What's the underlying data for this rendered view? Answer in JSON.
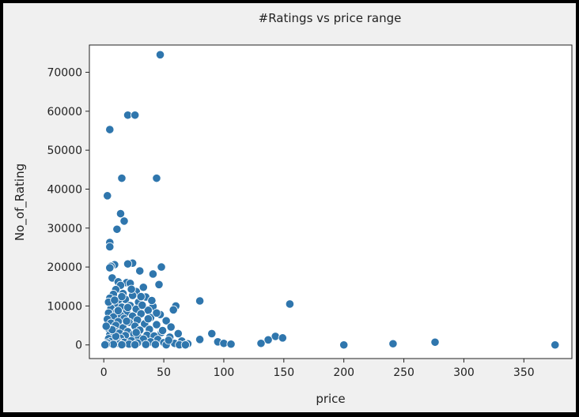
{
  "chart_data": {
    "type": "scatter",
    "title": "#Ratings vs price range",
    "xlabel": "price",
    "ylabel": "No_of_Rating",
    "xlim": [
      -12,
      390
    ],
    "ylim": [
      -3500,
      77000
    ],
    "x_ticks": [
      0,
      50,
      100,
      150,
      200,
      250,
      300,
      350
    ],
    "y_ticks": [
      0,
      10000,
      20000,
      30000,
      40000,
      50000,
      60000,
      70000
    ],
    "grid": false,
    "legend": "none",
    "marker_color": "#2f76ad",
    "marker_edge_color": "#ffffff",
    "series": [
      {
        "points": [
          [
            47,
            74500
          ],
          [
            20,
            59000
          ],
          [
            26,
            59000
          ],
          [
            5,
            55300
          ],
          [
            15,
            42800
          ],
          [
            44,
            42800
          ],
          [
            3,
            38300
          ],
          [
            14,
            33700
          ],
          [
            17,
            31800
          ],
          [
            11,
            29700
          ],
          [
            5,
            26300
          ],
          [
            5,
            25200
          ],
          [
            24,
            21000
          ],
          [
            20,
            20800
          ],
          [
            9,
            20600
          ],
          [
            6,
            20200
          ],
          [
            48,
            20000
          ],
          [
            5,
            19800
          ],
          [
            30,
            19000
          ],
          [
            41,
            18200
          ],
          [
            7,
            17200
          ],
          [
            12,
            16200
          ],
          [
            19,
            16000
          ],
          [
            22,
            15800
          ],
          [
            46,
            15500
          ],
          [
            14,
            15300
          ],
          [
            33,
            14800
          ],
          [
            10,
            14200
          ],
          [
            27,
            13700
          ],
          [
            16,
            13200
          ],
          [
            8,
            13000
          ],
          [
            24,
            12700
          ],
          [
            35,
            12300
          ],
          [
            5,
            12000
          ],
          [
            18,
            11700
          ],
          [
            12,
            11400
          ],
          [
            80,
            11300
          ],
          [
            29,
            11000
          ],
          [
            155,
            10500
          ],
          [
            9,
            10300
          ],
          [
            22,
            10100
          ],
          [
            60,
            10000
          ],
          [
            41,
            9900
          ],
          [
            15,
            9700
          ],
          [
            6,
            9400
          ],
          [
            27,
            9200
          ],
          [
            58,
            9000
          ],
          [
            37,
            8900
          ],
          [
            11,
            8600
          ],
          [
            19,
            8400
          ],
          [
            4,
            8200
          ],
          [
            31,
            8000
          ],
          [
            47,
            7800
          ],
          [
            14,
            7600
          ],
          [
            24,
            7400
          ],
          [
            8,
            7200
          ],
          [
            39,
            7000
          ],
          [
            17,
            6800
          ],
          [
            3,
            6600
          ],
          [
            28,
            6400
          ],
          [
            52,
            6200
          ],
          [
            12,
            6000
          ],
          [
            21,
            5800
          ],
          [
            6,
            5600
          ],
          [
            34,
            5400
          ],
          [
            44,
            5200
          ],
          [
            10,
            5000
          ],
          [
            26,
            4800
          ],
          [
            56,
            4600
          ],
          [
            16,
            4400
          ],
          [
            4,
            4200
          ],
          [
            38,
            4000
          ],
          [
            30,
            3800
          ],
          [
            9,
            3600
          ],
          [
            20,
            3400
          ],
          [
            48,
            3200
          ],
          [
            13,
            3000
          ],
          [
            62,
            2900
          ],
          [
            90,
            2900
          ],
          [
            25,
            2800
          ],
          [
            5,
            2600
          ],
          [
            36,
            2500
          ],
          [
            18,
            2400
          ],
          [
            42,
            2300
          ],
          [
            143,
            2200
          ],
          [
            8,
            2100
          ],
          [
            55,
            2000
          ],
          [
            29,
            1900
          ],
          [
            149,
            1800
          ],
          [
            14,
            1700
          ],
          [
            4,
            1600
          ],
          [
            33,
            1500
          ],
          [
            45,
            1400
          ],
          [
            80,
            1400
          ],
          [
            137,
            1300
          ],
          [
            11,
            1200
          ],
          [
            23,
            1100
          ],
          [
            65,
            1000
          ],
          [
            6,
            900
          ],
          [
            39,
            800
          ],
          [
            95,
            800
          ],
          [
            17,
            700
          ],
          [
            276,
            700
          ],
          [
            50,
            600
          ],
          [
            28,
            500
          ],
          [
            3,
            500
          ],
          [
            100,
            400
          ],
          [
            59,
            400
          ],
          [
            131,
            400
          ],
          [
            241,
            300
          ],
          [
            13,
            300
          ],
          [
            70,
            300
          ],
          [
            21,
            200
          ],
          [
            106,
            200
          ],
          [
            8,
            150
          ],
          [
            43,
            100
          ],
          [
            35,
            100
          ],
          [
            2,
            100
          ],
          [
            200,
            0
          ],
          [
            376,
            0
          ],
          [
            15,
            50
          ],
          [
            26,
            50
          ],
          [
            52,
            30
          ],
          [
            63,
            30
          ],
          [
            68,
            20
          ],
          [
            1,
            30
          ],
          [
            10,
            2200
          ],
          [
            19,
            6100
          ],
          [
            32,
            10200
          ],
          [
            7,
            3900
          ],
          [
            23,
            14300
          ],
          [
            37,
            6700
          ],
          [
            12,
            8800
          ],
          [
            27,
            3200
          ],
          [
            4,
            11000
          ],
          [
            15,
            12400
          ],
          [
            40,
            11400
          ],
          [
            49,
            3700
          ],
          [
            2,
            4800
          ],
          [
            31,
            12400
          ],
          [
            54,
            1200
          ],
          [
            20,
            9600
          ],
          [
            9,
            11500
          ],
          [
            44,
            8200
          ]
        ]
      }
    ]
  }
}
